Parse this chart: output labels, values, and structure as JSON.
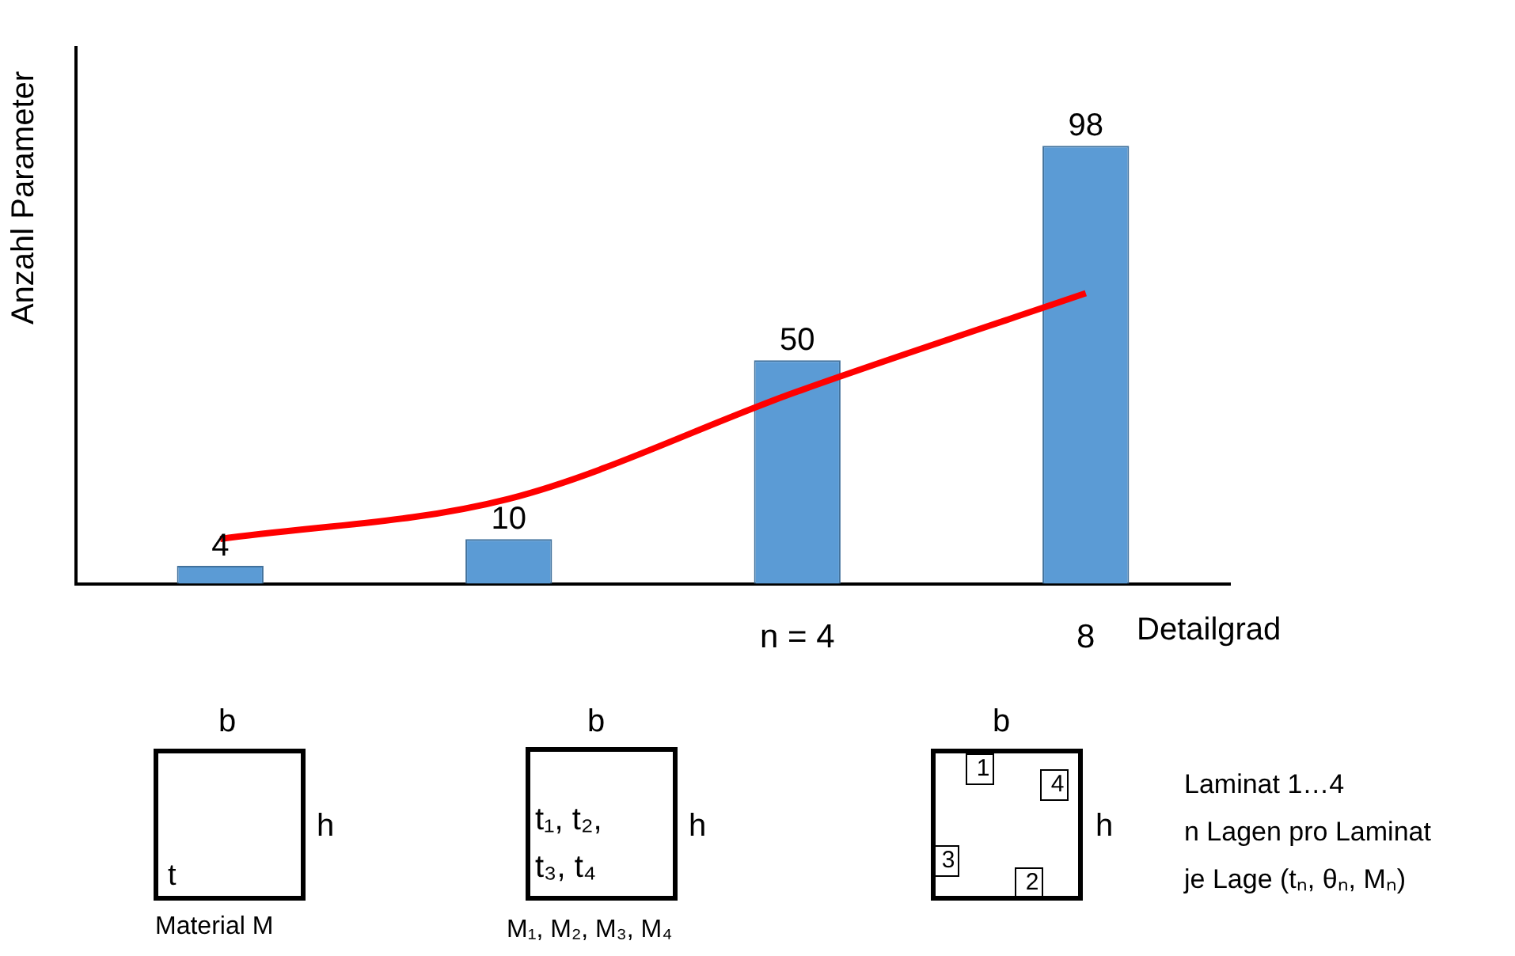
{
  "chart_data": {
    "type": "bar",
    "ylabel": "Anzahl Parameter",
    "xlabel": "Detailgrad",
    "categories": [
      null,
      null,
      "n = 4",
      "8"
    ],
    "series": [
      {
        "color": "#5b9bd5",
        "values": [
          4,
          10,
          50,
          98
        ],
        "value_labels": [
          "4",
          "10",
          "50",
          "98"
        ]
      },
      {
        "type": "line",
        "color": "#ff0000",
        "values": [
          10,
          19,
          43,
          65
        ]
      }
    ],
    "tick_labels": "x",
    "legend": false,
    "marker": "none",
    "annotations": [
      "b",
      "h",
      "t",
      "Material M",
      "b",
      "h",
      "t₁, t₂,",
      "t₃, t₄",
      "M₁, M₂, M₃, M₄",
      "b",
      "h",
      "1",
      "4",
      "3",
      "2",
      "Laminat 1…4",
      "n Lagen pro Laminat",
      "je Lage (tₙ, θₙ, Mₙ)"
    ]
  }
}
